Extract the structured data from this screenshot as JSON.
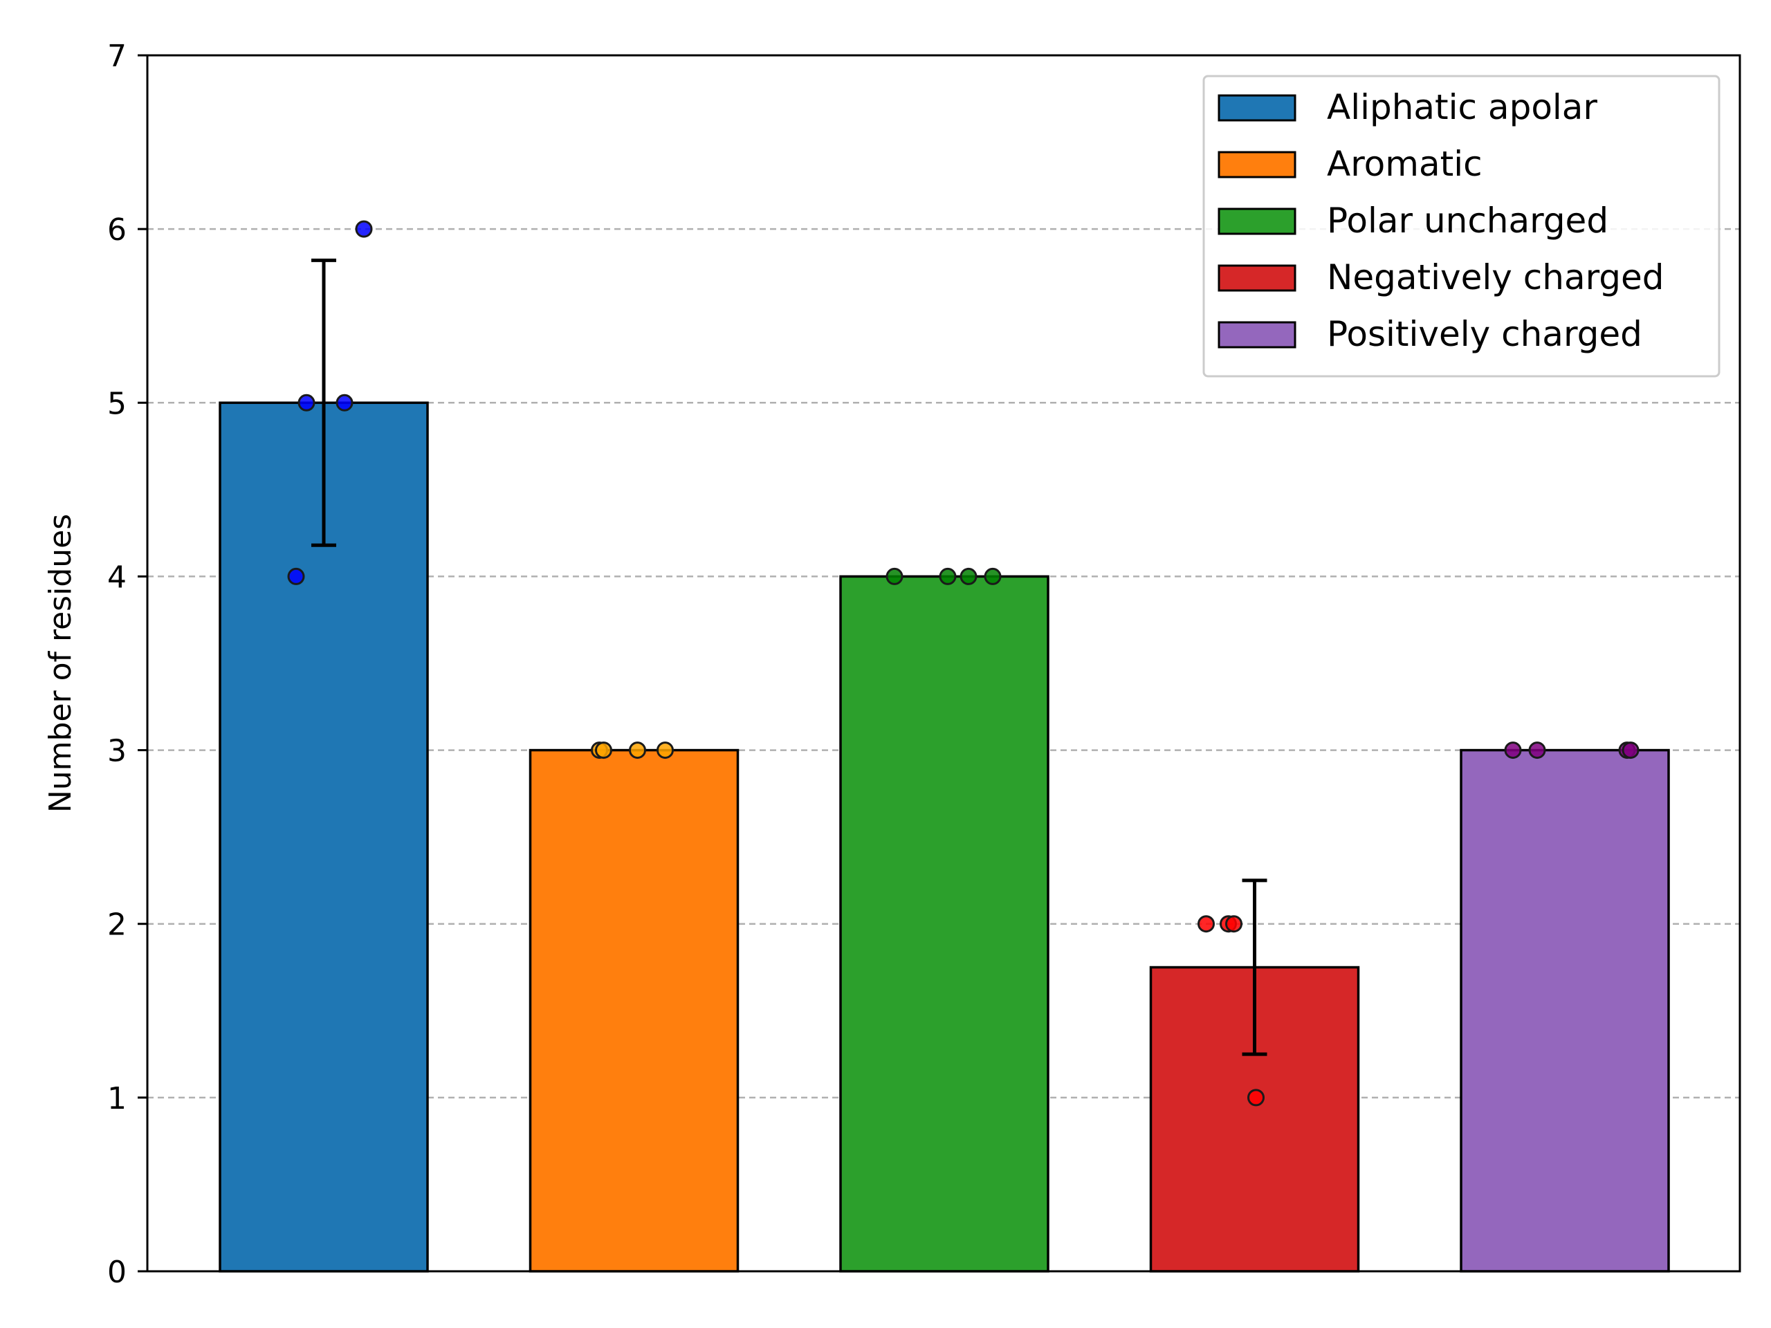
{
  "chart_data": {
    "type": "bar",
    "title": "",
    "xlabel": "",
    "ylabel": "Number of residues",
    "ylim": [
      0,
      7
    ],
    "yticks": [
      0,
      1,
      2,
      3,
      4,
      5,
      6,
      7
    ],
    "grid": "y-dashed",
    "legend_position": "top-right",
    "categories": [
      "Aliphatic apolar",
      "Aromatic",
      "Polar uncharged",
      "Negatively charged",
      "Positively charged"
    ],
    "values": [
      5,
      3,
      4,
      1.75,
      3
    ],
    "error": [
      0.82,
      0,
      0,
      0.5,
      0
    ],
    "colors": [
      "#1f77b4",
      "#ff7f0e",
      "#2ca02c",
      "#d62728",
      "#9467bd"
    ],
    "point_colors": [
      "#0000ff",
      "#ffa500",
      "#008000",
      "#ff0000",
      "#800080"
    ],
    "points": [
      [
        4,
        5,
        5,
        6
      ],
      [
        3,
        3,
        3,
        3
      ],
      [
        4,
        4,
        4,
        4
      ],
      [
        2,
        2,
        2,
        1
      ],
      [
        3,
        3,
        3,
        3
      ]
    ],
    "legend": [
      "Aliphatic apolar",
      "Aromatic",
      "Polar uncharged",
      "Negatively charged",
      "Positively charged"
    ]
  }
}
